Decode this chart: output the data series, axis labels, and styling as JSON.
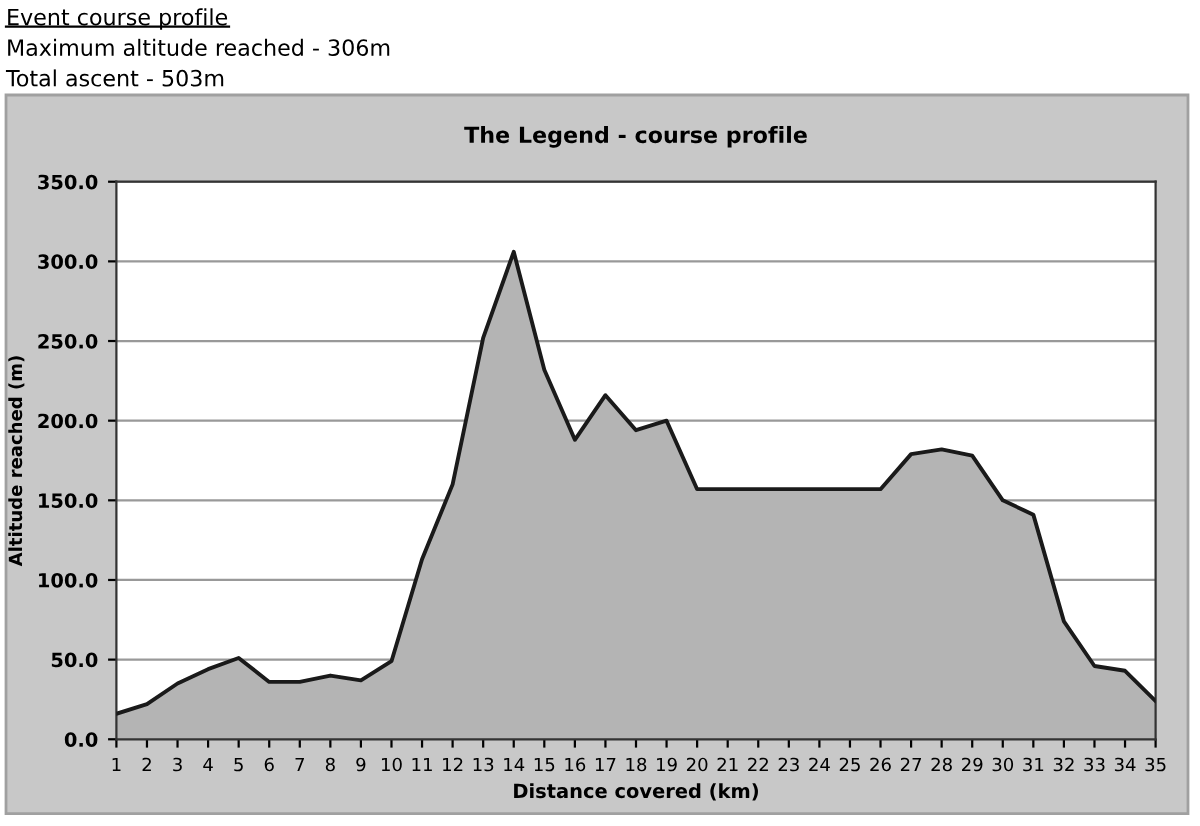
{
  "chart_data": {
    "type": "area",
    "title": "The Legend - course profile",
    "annotations": [
      "Event course profile",
      "Maximum altitude reached - 306m",
      "Total ascent - 503m"
    ],
    "xlabel": "Distance covered (km)",
    "ylabel": "Altitude reached (m)",
    "categories": [
      "1",
      "2",
      "3",
      "4",
      "5",
      "6",
      "7",
      "8",
      "9",
      "10",
      "11",
      "12",
      "13",
      "14",
      "15",
      "16",
      "17",
      "18",
      "19",
      "20",
      "21",
      "22",
      "23",
      "24",
      "25",
      "26",
      "27",
      "28",
      "29",
      "30",
      "31",
      "32",
      "33",
      "34",
      "35"
    ],
    "series": [
      {
        "color": "#b4b4b4",
        "values": [
          16,
          22,
          35,
          44,
          51,
          36,
          36,
          40,
          37,
          49,
          113,
          160,
          252,
          306,
          232,
          188,
          216,
          194,
          200,
          157,
          157,
          157,
          157,
          157,
          157,
          157,
          179,
          182,
          178,
          150,
          141,
          74,
          46,
          43,
          24
        ]
      }
    ],
    "ylim": [
      0,
      350
    ],
    "yticks": [
      {
        "value": 0,
        "label": "0.0"
      },
      {
        "value": 50,
        "label": "50.0"
      },
      {
        "value": 100,
        "label": "100.0"
      },
      {
        "value": 150,
        "label": "150.0"
      },
      {
        "value": 200,
        "label": "200.0"
      },
      {
        "value": 250,
        "label": "250.0"
      },
      {
        "value": 300,
        "label": "300.0"
      },
      {
        "value": 350,
        "label": "350.0"
      }
    ],
    "grid": "y",
    "legend": false
  }
}
